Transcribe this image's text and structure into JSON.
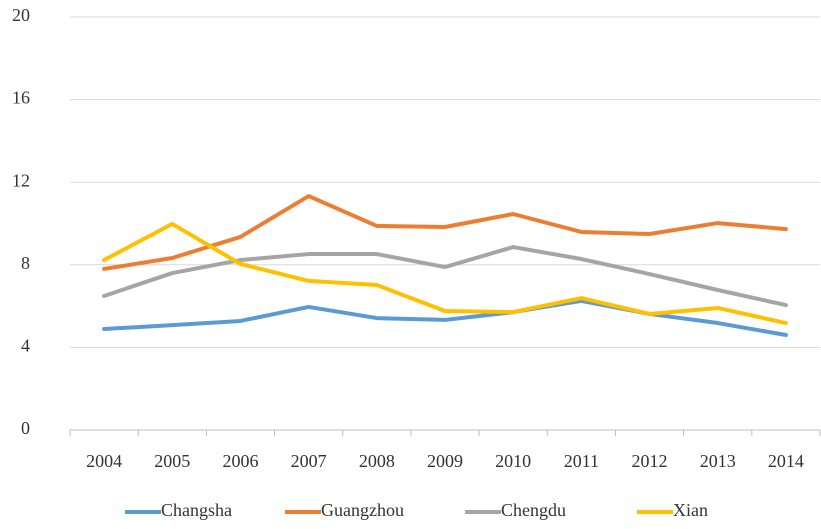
{
  "chart_data": {
    "type": "line",
    "categories": [
      "2004",
      "2005",
      "2006",
      "2007",
      "2008",
      "2009",
      "2010",
      "2011",
      "2012",
      "2013",
      "2014"
    ],
    "series": [
      {
        "name": "Changsha",
        "color": "#5b9bd5",
        "values": [
          4.89,
          5.08,
          5.28,
          5.96,
          5.42,
          5.33,
          5.71,
          6.25,
          5.62,
          5.18,
          4.6
        ]
      },
      {
        "name": "Guangzhou",
        "color": "#ed7d31",
        "values": [
          7.8,
          8.33,
          9.35,
          11.33,
          9.88,
          9.83,
          10.46,
          9.59,
          9.49,
          10.02,
          9.73
        ]
      },
      {
        "name": "Chengdu",
        "color": "#a5a5a5",
        "values": [
          6.49,
          7.6,
          8.23,
          8.52,
          8.52,
          7.89,
          8.86,
          8.28,
          7.55,
          6.78,
          6.05
        ]
      },
      {
        "name": "Xian",
        "color": "#ffc000",
        "values": [
          8.23,
          9.98,
          8.04,
          7.22,
          7.02,
          5.76,
          5.71,
          6.39,
          5.62,
          5.91,
          5.18
        ]
      }
    ],
    "ylim": [
      0,
      20
    ],
    "yticks": [
      0,
      4,
      8,
      12,
      16,
      20
    ],
    "grid": true,
    "legend": "bottom"
  }
}
